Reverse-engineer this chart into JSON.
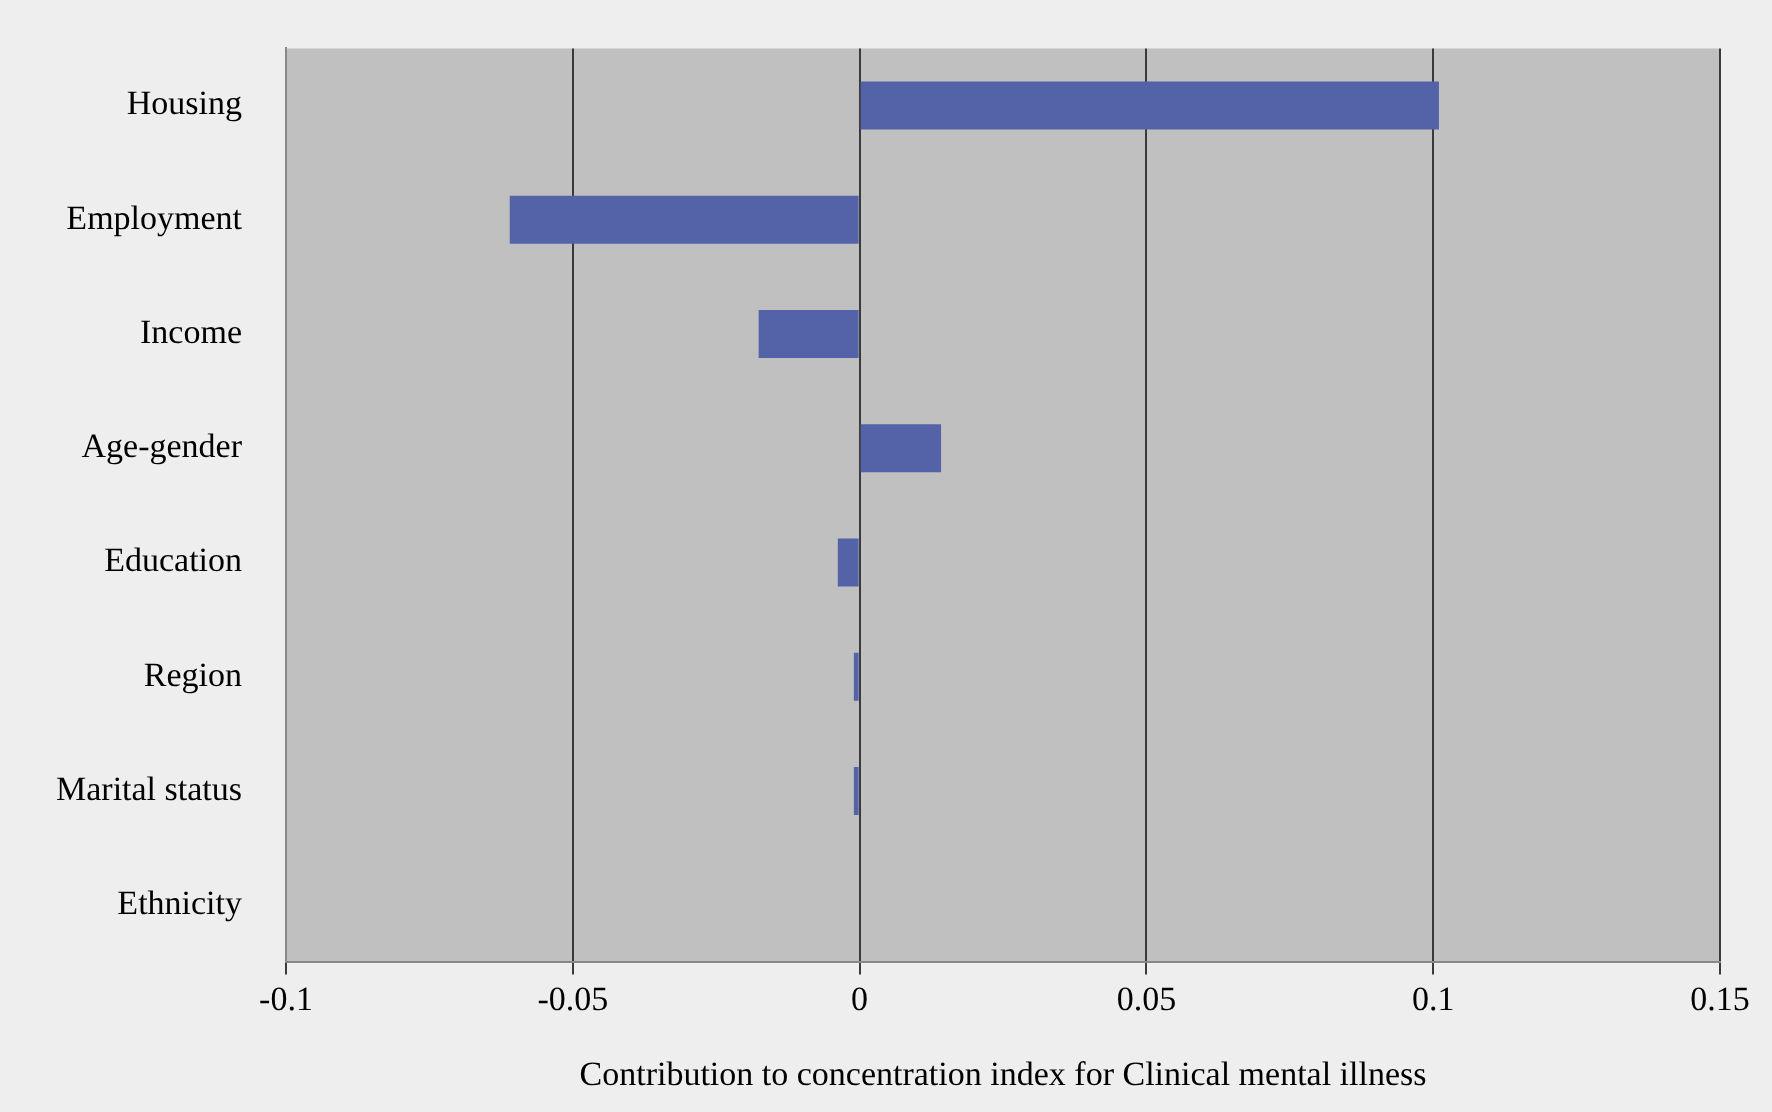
{
  "chart_data": {
    "type": "bar",
    "orientation": "horizontal",
    "xlabel": "Contribution to concentration index for Clinical mental illness",
    "categories": [
      "Housing",
      "Employment",
      "Income",
      "Age-gender",
      "Education",
      "Region",
      "Marital status",
      "Ethnicity"
    ],
    "values": [
      0.101,
      -0.061,
      -0.0176,
      0.0142,
      -0.0038,
      -0.001,
      -0.001,
      0
    ],
    "color": "#5462a8",
    "xlim": [
      -0.1,
      0.15
    ],
    "xticks": [
      -0.1,
      -0.05,
      0,
      0.05,
      0.1,
      0.15
    ],
    "grid": "x",
    "legend": false
  }
}
